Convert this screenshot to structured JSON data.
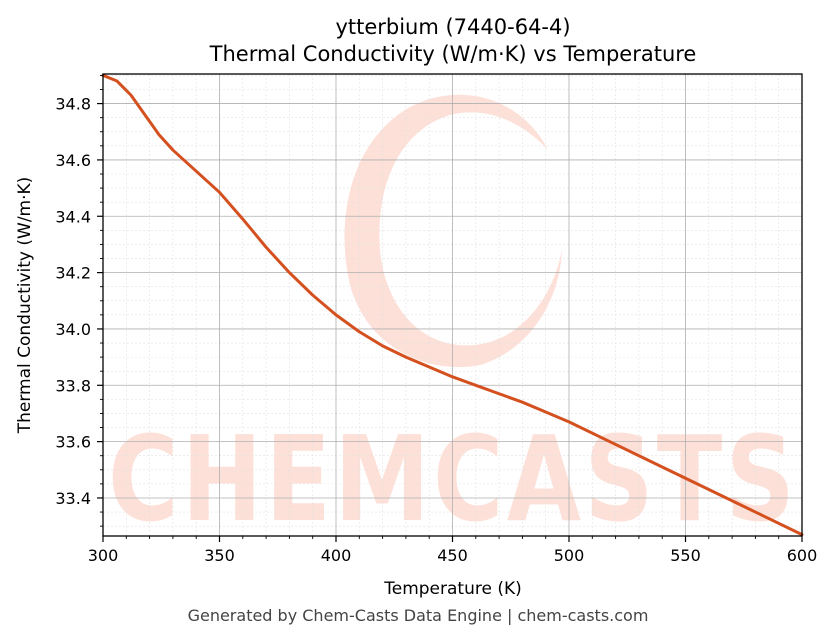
{
  "colors": {
    "line": "#d4501f",
    "grid_major": "#b0b0b0",
    "grid_minor": "#e2e2e2",
    "watermark": "#fdddd4",
    "footer_text": "#444444"
  },
  "watermark": {
    "text": "CHEMCASTS"
  },
  "footer": {
    "text": "Generated by Chem-Casts Data Engine | chem-casts.com"
  },
  "chart_data": {
    "type": "line",
    "title": "ytterbium (7440-64-4)",
    "subtitle": "Thermal Conductivity (W/m·K) vs Temperature",
    "xlabel": "Temperature (K)",
    "ylabel": "Thermal Conductivity (W/m·K)",
    "xlim": [
      300,
      600
    ],
    "ylim": [
      33.265,
      34.905
    ],
    "xticks": [
      300,
      350,
      400,
      450,
      500,
      550,
      600
    ],
    "xtick_labels": [
      "300",
      "350",
      "400",
      "450",
      "500",
      "550",
      "600"
    ],
    "yticks": [
      33.4,
      33.6,
      33.8,
      34.0,
      34.2,
      34.4,
      34.6,
      34.8
    ],
    "ytick_labels": [
      "33.4",
      "33.6",
      "33.8",
      "34.0",
      "34.2",
      "34.4",
      "34.6",
      "34.8"
    ],
    "grid": true,
    "minor_grid": true,
    "series": [
      {
        "x": [
          300,
          306,
          312,
          318,
          324,
          330,
          340,
          350,
          360,
          370,
          380,
          390,
          400,
          410,
          420,
          430,
          440,
          450,
          460,
          470,
          480,
          490,
          500,
          520,
          540,
          560,
          580,
          600
        ],
        "y": [
          34.9,
          34.88,
          34.83,
          34.76,
          34.69,
          34.635,
          34.56,
          34.485,
          34.39,
          34.29,
          34.2,
          34.12,
          34.05,
          33.99,
          33.94,
          33.9,
          33.865,
          33.83,
          33.8,
          33.77,
          33.74,
          33.705,
          33.67,
          33.59,
          33.51,
          33.43,
          33.35,
          33.27
        ]
      }
    ]
  }
}
